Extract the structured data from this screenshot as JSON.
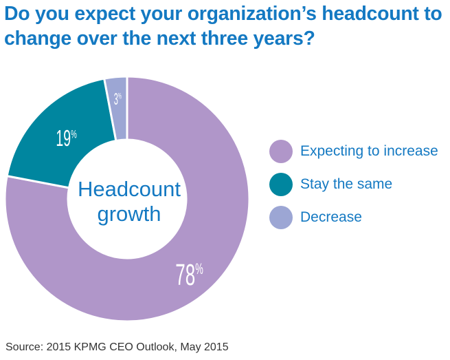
{
  "title": {
    "line1": "Do you expect your organization’s headcount to",
    "line2": "change over the next three years?"
  },
  "colors": {
    "title": "#1479c2",
    "label_text": "#ffffff",
    "center_text": "#1479c2"
  },
  "chart_data": {
    "type": "pie",
    "style": "donut",
    "center_label": [
      "Headcount",
      "growth"
    ],
    "unit": "%",
    "slices": [
      {
        "label": "Expecting to increase",
        "value": 78,
        "display": "78",
        "color": "#b096c9"
      },
      {
        "label": "Stay the same",
        "value": 19,
        "display": "19",
        "color": "#00869f"
      },
      {
        "label": "Decrease",
        "value": 3,
        "display": "3",
        "color": "#9ca6d4"
      }
    ],
    "legend_position": "right"
  },
  "source": "Source: 2015 KPMG CEO Outlook, May 2015"
}
